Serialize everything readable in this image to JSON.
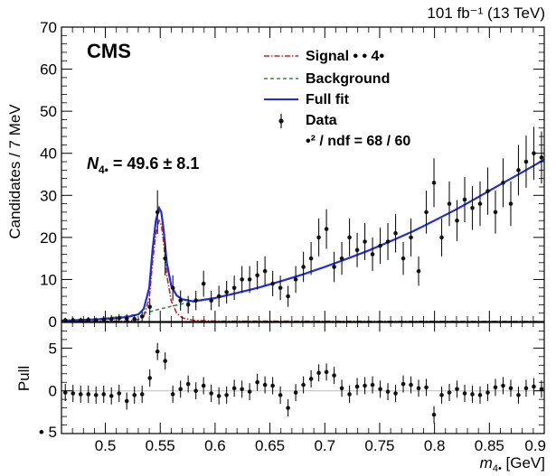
{
  "header": {
    "experiment": "CMS",
    "luminosity": "101 fb⁻¹ (13 TeV)"
  },
  "colors": {
    "signal": "#cc2222",
    "background": "#338844",
    "full_fit": "#1f2be0",
    "data": "#111111",
    "frame": "#000000",
    "zero_line": "#bbbbbb"
  },
  "legend": {
    "signal": "Signal •  •    4•",
    "background": "Background",
    "full_fit": "Full fit",
    "data": "Data",
    "chi2": "•² / ndf = 68 / 60"
  },
  "annotation": {
    "yield_label": "N",
    "yield_sub": "4•",
    "yield_value": " = 49.6 ± 8.1"
  },
  "chart_data": [
    {
      "type": "scatter",
      "panel": "fit",
      "xlim": [
        0.46,
        0.9
      ],
      "ylim": [
        0,
        70
      ],
      "ylabel": "Candidates / 7 MeV",
      "y_ticks": [
        0,
        10,
        20,
        30,
        40,
        50,
        60,
        70
      ],
      "series": [
        {
          "name": "Data",
          "x": [
            0.4635,
            0.4705,
            0.4775,
            0.4845,
            0.4915,
            0.4985,
            0.5055,
            0.5125,
            0.5195,
            0.5265,
            0.5335,
            0.5405,
            0.5475,
            0.5545,
            0.5615,
            0.5685,
            0.5755,
            0.5825,
            0.5895,
            0.5965,
            0.6035,
            0.6105,
            0.6175,
            0.6245,
            0.6315,
            0.6385,
            0.6455,
            0.6525,
            0.6595,
            0.6665,
            0.6735,
            0.6805,
            0.6875,
            0.6945,
            0.7015,
            0.7085,
            0.7155,
            0.7225,
            0.7295,
            0.7365,
            0.7435,
            0.7505,
            0.7575,
            0.7645,
            0.7715,
            0.7785,
            0.7855,
            0.7925,
            0.7995,
            0.8065,
            0.8135,
            0.8205,
            0.8275,
            0.8345,
            0.8415,
            0.8485,
            0.8555,
            0.8625,
            0.8695,
            0.8765,
            0.8835,
            0.8905,
            0.8975
          ],
          "y": [
            0.3,
            0.3,
            0.3,
            0.4,
            0.3,
            0.5,
            0.6,
            0.8,
            0.7,
            0.6,
            1.2,
            3.5,
            26,
            15,
            8,
            5,
            4,
            5,
            9,
            5,
            6,
            7,
            8,
            10,
            10,
            11,
            12,
            9,
            8,
            6,
            10,
            13,
            15,
            20,
            22,
            13,
            15,
            20,
            17,
            19,
            16,
            18,
            19,
            21,
            15,
            20,
            12,
            26,
            33,
            20,
            28,
            24,
            29,
            27,
            28,
            31,
            26,
            33,
            28,
            36,
            38,
            40,
            39
          ],
          "err": [
            0.6,
            0.6,
            0.6,
            0.7,
            0.6,
            0.8,
            0.9,
            1,
            1,
            0.9,
            1.2,
            2,
            5.2,
            4,
            3,
            2.4,
            2.1,
            2.3,
            3.1,
            2.3,
            2.5,
            2.7,
            2.9,
            3.2,
            3.2,
            3.4,
            3.5,
            3,
            2.9,
            2.5,
            3.2,
            3.6,
            3.9,
            4.5,
            4.7,
            3.6,
            3.9,
            4.5,
            4.1,
            4.4,
            4,
            4.3,
            4.4,
            4.6,
            3.9,
            4.5,
            3.5,
            5.1,
            5.8,
            4.5,
            5.3,
            4.9,
            5.4,
            5.2,
            5.3,
            5.6,
            5.1,
            5.8,
            5.3,
            6,
            6.2,
            6.3,
            6.2
          ]
        },
        {
          "name": "Full fit",
          "x": [
            0.46,
            0.47,
            0.48,
            0.49,
            0.5,
            0.51,
            0.52,
            0.53,
            0.535,
            0.54,
            0.543,
            0.546,
            0.549,
            0.551,
            0.553,
            0.556,
            0.56,
            0.565,
            0.57,
            0.58,
            0.6,
            0.62,
            0.64,
            0.66,
            0.68,
            0.7,
            0.72,
            0.74,
            0.76,
            0.78,
            0.8,
            0.82,
            0.84,
            0.86,
            0.88,
            0.9
          ],
          "y": [
            0.25,
            0.3,
            0.4,
            0.5,
            0.6,
            0.8,
            1.1,
            1.7,
            3,
            8,
            17,
            24,
            27,
            26,
            22,
            14,
            8.5,
            6.2,
            5.3,
            4.8,
            5.6,
            6.8,
            8.1,
            9.6,
            11.2,
            13,
            14.9,
            16.9,
            19.1,
            21.4,
            24,
            26.7,
            29.6,
            32.6,
            35.5,
            38.5
          ]
        },
        {
          "name": "Background",
          "x": [
            0.46,
            0.48,
            0.5,
            0.52,
            0.54,
            0.55,
            0.56,
            0.57,
            0.58,
            0.6
          ],
          "y": [
            0.15,
            0.4,
            0.8,
            1.3,
            2.3,
            3,
            3.6,
            4.2,
            4.7,
            5.5
          ]
        },
        {
          "name": "Signal",
          "x": [
            0.46,
            0.52,
            0.53,
            0.535,
            0.54,
            0.543,
            0.546,
            0.549,
            0.551,
            0.553,
            0.556,
            0.56,
            0.565,
            0.57,
            0.58,
            0.6,
            0.9
          ],
          "y": [
            0,
            0.1,
            0.5,
            1.2,
            5.5,
            14,
            21,
            24,
            23,
            19,
            11,
            4.9,
            2,
            0.9,
            0.3,
            0.1,
            0
          ]
        }
      ]
    },
    {
      "type": "scatter",
      "panel": "pull",
      "xlim": [
        0.46,
        0.9
      ],
      "ylim": [
        -5,
        8
      ],
      "ylabel": "Pull",
      "xlabel_main": "m",
      "xlabel_sub": "4•",
      "xlabel_unit": " [GeV]",
      "x_ticks": [
        0.5,
        0.55,
        0.6,
        0.65,
        0.7,
        0.75,
        0.8,
        0.85,
        0.9
      ],
      "x_tick_labels": [
        "0.5",
        "0.55",
        "0.6",
        "0.65",
        "0.7",
        "0.75",
        "0.8",
        "0.85",
        "0.9"
      ],
      "y_ticks": [
        -5,
        0,
        5
      ],
      "y_tick_labels": [
        "• 5",
        "0",
        "5"
      ],
      "series": [
        {
          "name": "Pull",
          "x": [
            0.4635,
            0.4705,
            0.4775,
            0.4845,
            0.4915,
            0.4985,
            0.5055,
            0.5125,
            0.5195,
            0.5265,
            0.5335,
            0.5405,
            0.5475,
            0.5545,
            0.5615,
            0.5685,
            0.5755,
            0.5825,
            0.5895,
            0.5965,
            0.6035,
            0.6105,
            0.6175,
            0.6245,
            0.6315,
            0.6385,
            0.6455,
            0.6525,
            0.6595,
            0.6665,
            0.6735,
            0.6805,
            0.6875,
            0.6945,
            0.7015,
            0.7085,
            0.7155,
            0.7225,
            0.7295,
            0.7365,
            0.7435,
            0.7505,
            0.7575,
            0.7645,
            0.7715,
            0.7785,
            0.7855,
            0.7925,
            0.7995,
            0.8065,
            0.8135,
            0.8205,
            0.8275,
            0.8345,
            0.8415,
            0.8485,
            0.8555,
            0.8625,
            0.8695,
            0.8765,
            0.8835,
            0.8905,
            0.8975
          ],
          "y": [
            -0.2,
            -0.3,
            -0.4,
            -0.4,
            -0.5,
            -0.4,
            -0.6,
            -0.3,
            -1.2,
            -0.5,
            -0.4,
            1.5,
            4.6,
            3.5,
            -0.4,
            0.2,
            0.8,
            0,
            0.6,
            -0.3,
            -0.6,
            -0.5,
            0.3,
            0.2,
            -0.1,
            1,
            0.7,
            0.6,
            -0.5,
            -2,
            -0.2,
            0.7,
            1.4,
            2.1,
            2.2,
            1.8,
            0.3,
            -0.4,
            0.5,
            0.6,
            0.7,
            0.2,
            -0.1,
            -0.3,
            0.8,
            0.7,
            0.3,
            0.4,
            -2.8,
            -0.5,
            -0.2,
            0.2,
            -0.3,
            -0.4,
            -0.5,
            -0.2,
            0.4,
            0.6,
            0.3,
            -0.5,
            0.3,
            0.5,
            0.2
          ],
          "err": [
            1,
            1,
            1,
            1,
            1,
            1,
            1,
            1,
            1,
            1,
            1,
            1,
            1,
            1,
            1,
            1,
            1,
            1,
            1,
            1,
            1,
            1,
            1,
            1,
            1,
            1,
            1,
            1,
            1,
            1,
            1,
            1,
            1,
            1,
            1,
            1,
            1,
            1,
            1,
            1,
            1,
            1,
            1,
            1,
            1,
            1,
            1,
            1,
            1,
            1,
            1,
            1,
            1,
            1,
            1,
            1,
            1,
            1,
            1,
            1,
            1,
            1,
            1
          ]
        }
      ]
    }
  ]
}
